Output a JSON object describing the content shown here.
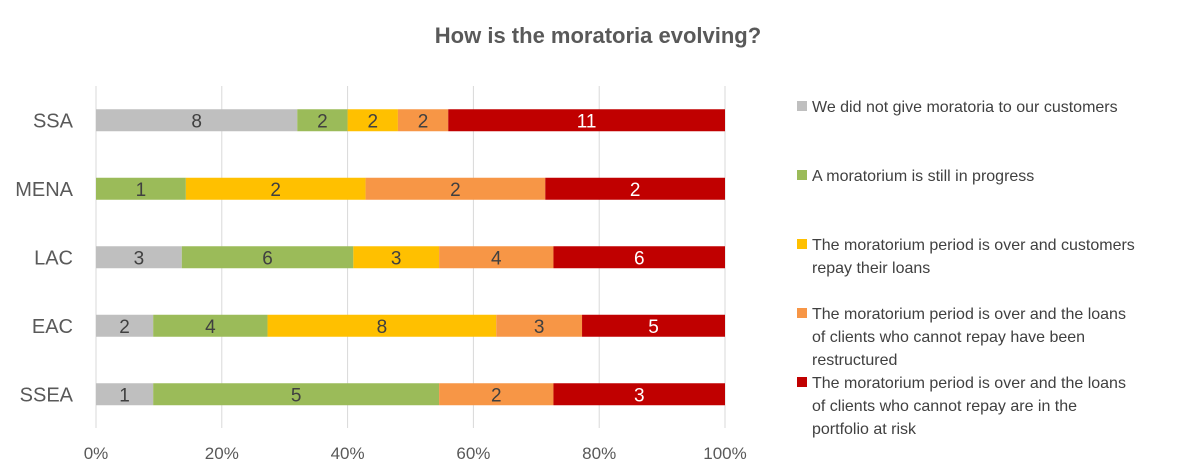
{
  "chart_data": {
    "type": "bar",
    "orientation": "horizontal",
    "stacked": "percent",
    "title": "How is the moratoria evolving?",
    "categories": [
      "SSA",
      "MENA",
      "LAC",
      "EAC",
      "SSEA"
    ],
    "xlim": [
      0,
      100
    ],
    "x_ticks": [
      "0%",
      "20%",
      "40%",
      "60%",
      "80%",
      "100%"
    ],
    "grid": true,
    "legend_position": "right",
    "series": [
      {
        "name": "We did not give moratoria to our customers",
        "legend_lines": [
          "We did not give moratoria to our customers"
        ],
        "color": "#bfbfbf",
        "label_color": "#404040",
        "values": [
          8,
          0,
          3,
          2,
          1
        ]
      },
      {
        "name": "A moratorium is still in progress",
        "legend_lines": [
          "A moratorium is still in progress"
        ],
        "color": "#9bbb59",
        "label_color": "#404040",
        "values": [
          2,
          1,
          6,
          4,
          5
        ]
      },
      {
        "name": "The moratorium period is over and customers repay their loans",
        "legend_lines": [
          "The moratorium period is over and customers",
          "repay their loans"
        ],
        "color": "#ffc000",
        "label_color": "#404040",
        "values": [
          2,
          2,
          3,
          8,
          0
        ]
      },
      {
        "name": "The moratorium period is over and the loans of clients who cannot repay have been restructured",
        "legend_lines": [
          "The moratorium period is over and the loans",
          "of clients who cannot repay have been",
          "restructured"
        ],
        "color": "#f79646",
        "label_color": "#404040",
        "values": [
          2,
          2,
          4,
          3,
          2
        ]
      },
      {
        "name": "The moratorium period is over and the loans of clients who cannot repay are in the portfolio at risk",
        "legend_lines": [
          "The moratorium period is over and the loans",
          "of clients who cannot repay are in the",
          "portfolio at risk"
        ],
        "color": "#c00000",
        "label_color": "#ffffff",
        "values": [
          11,
          2,
          6,
          5,
          3
        ]
      }
    ]
  }
}
